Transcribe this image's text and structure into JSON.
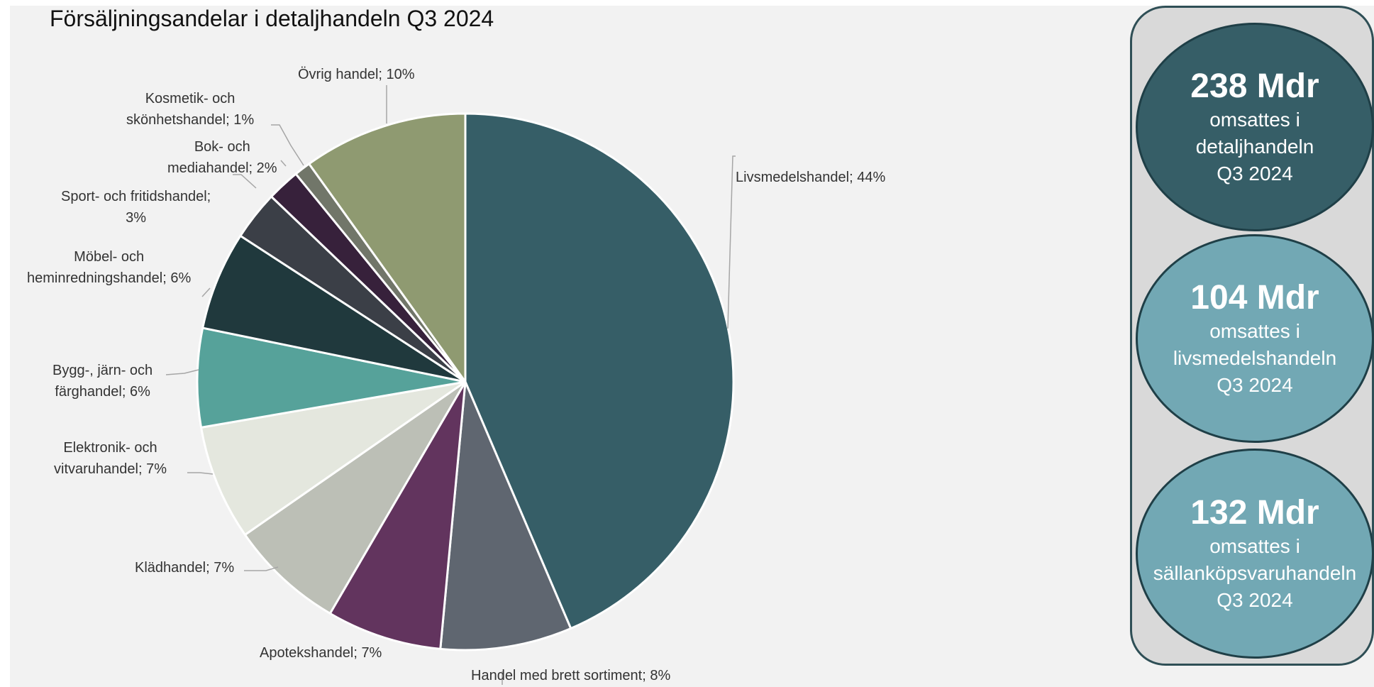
{
  "title": "Försäljningsandelar i detaljhandeln Q3 2024",
  "chart_data": {
    "type": "pie",
    "title": "Försäljningsandelar i detaljhandeln Q3 2024",
    "start_angle_deg": 0,
    "direction": "clockwise",
    "slices": [
      {
        "label": "Livsmedelshandel",
        "value": 44,
        "label_text": "Livsmedelshandel; 44%",
        "color": "#365e67"
      },
      {
        "label": "Handel med brett sortiment",
        "value": 8,
        "label_text": "Handel med brett sortiment; 8%",
        "color": "#5f6670"
      },
      {
        "label": "Apotekshandel",
        "value": 7,
        "label_text": "Apotekshandel; 7%",
        "color": "#62345e"
      },
      {
        "label": "Klädhandel",
        "value": 7,
        "label_text": "Klädhandel; 7%",
        "color": "#bcbfb6"
      },
      {
        "label": "Elektronik- och vitvaruhandel",
        "value": 7,
        "label_text": "Elektronik- och vitvaruhandel; 7%",
        "color": "#e4e7de"
      },
      {
        "label": "Bygg-, järn- och färghandel",
        "value": 6,
        "label_text": "Bygg-, järn- och färghandel; 6%",
        "color": "#56a29a"
      },
      {
        "label": "Möbel- och heminredningshandel",
        "value": 6,
        "label_text": "Möbel- och heminredningshandel; 6%",
        "color": "#20393d"
      },
      {
        "label": "Sport- och fritidshandel",
        "value": 3,
        "label_text": "Sport- och fritidshandel; 3%",
        "color": "#3b3f47"
      },
      {
        "label": "Bok- och mediahandel",
        "value": 2,
        "label_text": "Bok- och mediahandel; 2%",
        "color": "#37213b"
      },
      {
        "label": "Kosmetik- och skönhetshandel",
        "value": 1,
        "label_text": "Kosmetik- och skönhetshandel; 1%",
        "color": "#717669"
      },
      {
        "label": "Övrig handel",
        "value": 10,
        "label_text": "Övrig handel; 10%",
        "color": "#8f9a71"
      }
    ]
  },
  "labels": {
    "liv": [
      "Livsmedelshandel; 44%"
    ],
    "brett": [
      "Handel med brett sortiment; 8%"
    ],
    "apotek": [
      "Apotekshandel; 7%"
    ],
    "klad": [
      "Klädhandel; 7%"
    ],
    "elektronik": [
      "Elektronik- och",
      "vitvaruhandel; 7%"
    ],
    "bygg": [
      "Bygg-, järn- och",
      "färghandel; 6%"
    ],
    "mobel": [
      "Möbel- och",
      "heminredningshandel; 6%"
    ],
    "sport": [
      "Sport- och fritidshandel;",
      "3%"
    ],
    "bok": [
      "Bok- och",
      "mediahandel; 2%"
    ],
    "kosmetik": [
      "Kosmetik- och",
      "skönhetshandel; 1%"
    ],
    "ovrig": [
      "Övrig handel; 10%"
    ]
  },
  "kpis": [
    {
      "value": "238 Mdr",
      "line1": "omsattes i",
      "line2": "detaljhandeln",
      "line3": "Q3 2024",
      "fill": "#365e67"
    },
    {
      "value": "104 Mdr",
      "line1": "omsattes i",
      "line2": "livsmedelshandeln",
      "line3": "Q3 2024",
      "fill": "#72a8b4"
    },
    {
      "value": "132 Mdr",
      "line1": "omsattes i",
      "line2": "sällanköpsvaruhandeln",
      "line3": "Q3 2024",
      "fill": "#72a8b4"
    }
  ]
}
